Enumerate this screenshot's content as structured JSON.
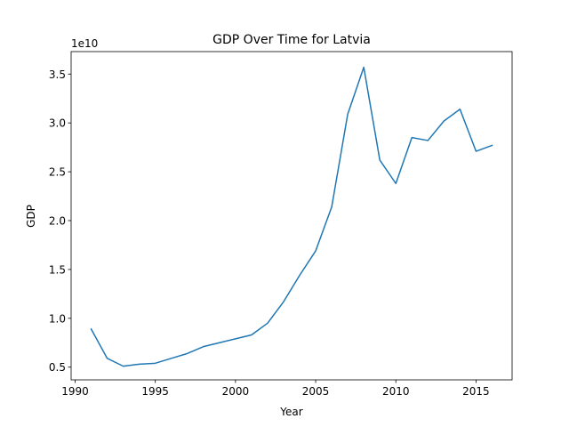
{
  "chart_data": {
    "type": "line",
    "title": "GDP Over Time for Latvia",
    "xlabel": "Year",
    "ylabel": "GDP",
    "y_offset_label": "1e10",
    "xlim": [
      1989.75,
      2017.25
    ],
    "ylim": [
      0.37,
      3.73
    ],
    "x_ticks": [
      1990,
      1995,
      2000,
      2005,
      2010,
      2015
    ],
    "x_tick_labels": [
      "1990",
      "1995",
      "2000",
      "2005",
      "2010",
      "2015"
    ],
    "y_ticks": [
      0.5,
      1.0,
      1.5,
      2.0,
      2.5,
      3.0,
      3.5
    ],
    "y_tick_labels": [
      "0.5",
      "1.0",
      "1.5",
      "2.0",
      "2.5",
      "3.0",
      "3.5"
    ],
    "grid": false,
    "line_color": "#1f77b4",
    "series": [
      {
        "x": [
          1991,
          1992,
          1993,
          1994,
          1995,
          1996,
          1997,
          1998,
          1999,
          2000,
          2001,
          2002,
          2003,
          2004,
          2005,
          2006,
          2007,
          2008,
          2009,
          2010,
          2011,
          2012,
          2013,
          2014,
          2015,
          2016
        ],
        "values": [
          0.89,
          0.59,
          0.51,
          0.53,
          0.54,
          0.59,
          0.64,
          0.71,
          0.75,
          0.79,
          0.83,
          0.95,
          1.17,
          1.44,
          1.69,
          2.14,
          3.09,
          3.57,
          2.62,
          2.38,
          2.85,
          2.82,
          3.02,
          3.14,
          2.71,
          2.77
        ]
      }
    ]
  }
}
